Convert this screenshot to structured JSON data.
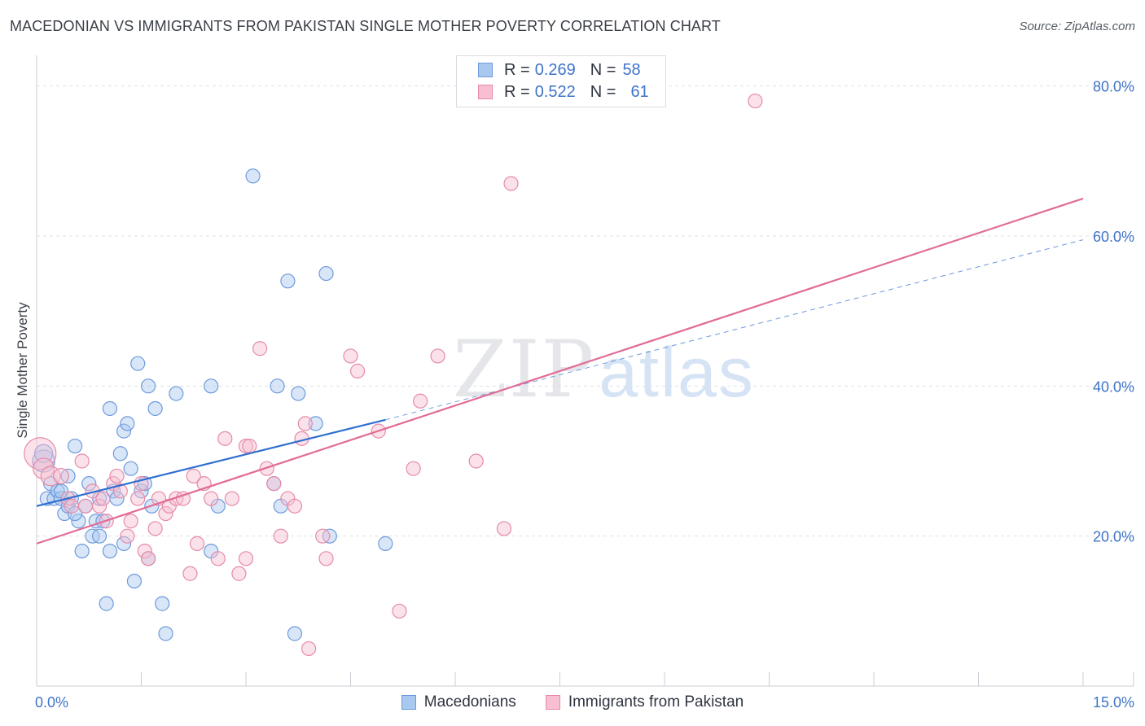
{
  "header": {
    "title": "MACEDONIAN VS IMMIGRANTS FROM PAKISTAN SINGLE MOTHER POVERTY CORRELATION CHART",
    "source": "Source: ZipAtlas.com"
  },
  "watermark": {
    "zip": "ZIP",
    "atlas": "atlas"
  },
  "legend": {
    "rows": [
      {
        "r_label": "R =",
        "r_value": "0.269",
        "n_label": "N =",
        "n_value": "58",
        "color": "#a9c8f0",
        "border": "#6e9bdc"
      },
      {
        "r_label": "R =",
        "r_value": "0.522",
        "n_label": "N =",
        "n_value": "61",
        "color": "#f7bfd1",
        "border": "#e68aa9"
      }
    ]
  },
  "bottom_legend": {
    "items": [
      {
        "label": "Macedonians",
        "color": "#a9c8f0",
        "border": "#6e9bdc"
      },
      {
        "label": "Immigrants from Pakistan",
        "color": "#f7bfd1",
        "border": "#e68aa9"
      }
    ]
  },
  "chart_data": {
    "type": "scatter",
    "title": "MACEDONIAN VS IMMIGRANTS FROM PAKISTAN SINGLE MOTHER POVERTY CORRELATION CHART",
    "xlabel": "",
    "ylabel": "Single Mother Poverty",
    "xlim": [
      0,
      15
    ],
    "ylim": [
      0,
      83
    ],
    "x_tick_labels": [
      {
        "value": 0,
        "label": "0.0%"
      },
      {
        "value": 15,
        "label": "15.0%"
      }
    ],
    "y_tick_labels": [
      {
        "value": 20,
        "label": "20.0%"
      },
      {
        "value": 40,
        "label": "40.0%"
      },
      {
        "value": 60,
        "label": "60.0%"
      },
      {
        "value": 80,
        "label": "80.0%"
      }
    ],
    "grid_y": [
      20,
      40,
      60,
      80
    ],
    "series": [
      {
        "name": "Macedonians",
        "color": "#a9c8f0",
        "stroke": "#6e9bdc",
        "line_color": "#2f6fd0",
        "trend": {
          "x0": 0,
          "y0": 24,
          "x1": 5,
          "y1": 35.5,
          "dash_x1": 15,
          "dash_y1": 59.5
        },
        "points": [
          [
            0.1,
            30,
            1.6
          ],
          [
            0.1,
            31,
            1.3
          ],
          [
            0.15,
            25,
            1
          ],
          [
            0.2,
            27,
            1
          ],
          [
            0.25,
            25,
            1
          ],
          [
            0.3,
            26,
            1
          ],
          [
            0.35,
            25,
            1
          ],
          [
            0.4,
            23,
            1
          ],
          [
            0.45,
            24,
            1
          ],
          [
            0.5,
            25,
            1
          ],
          [
            0.55,
            32,
            1
          ],
          [
            0.6,
            22,
            1
          ],
          [
            0.65,
            18,
            1
          ],
          [
            0.75,
            27,
            1
          ],
          [
            0.8,
            20,
            1
          ],
          [
            0.85,
            22,
            1
          ],
          [
            0.9,
            20,
            1
          ],
          [
            0.95,
            22,
            1
          ],
          [
            1.0,
            11,
            1
          ],
          [
            1.05,
            18,
            1
          ],
          [
            1.05,
            37,
            1
          ],
          [
            1.1,
            26,
            1
          ],
          [
            1.15,
            25,
            1
          ],
          [
            1.2,
            31,
            1
          ],
          [
            1.25,
            19,
            1
          ],
          [
            1.25,
            34,
            1
          ],
          [
            1.3,
            35,
            1
          ],
          [
            1.35,
            29,
            1
          ],
          [
            1.4,
            14,
            1
          ],
          [
            1.45,
            43,
            1
          ],
          [
            1.5,
            26,
            1
          ],
          [
            1.55,
            27,
            1
          ],
          [
            1.6,
            40,
            1
          ],
          [
            1.6,
            17,
            1
          ],
          [
            1.65,
            24,
            1
          ],
          [
            1.7,
            37,
            1
          ],
          [
            1.8,
            11,
            1
          ],
          [
            1.85,
            7,
            1
          ],
          [
            2.0,
            39,
            1
          ],
          [
            2.5,
            40,
            1
          ],
          [
            2.5,
            18,
            1
          ],
          [
            2.6,
            24,
            1
          ],
          [
            3.1,
            68,
            1
          ],
          [
            3.4,
            27,
            1
          ],
          [
            3.45,
            40,
            1
          ],
          [
            3.5,
            24,
            1
          ],
          [
            3.6,
            54,
            1
          ],
          [
            3.7,
            7,
            1
          ],
          [
            3.75,
            39,
            1
          ],
          [
            4.0,
            35,
            1
          ],
          [
            4.15,
            55,
            1
          ],
          [
            4.2,
            20,
            1
          ],
          [
            5.0,
            19,
            1
          ],
          [
            0.55,
            23,
            1
          ],
          [
            0.45,
            28,
            1
          ],
          [
            0.7,
            24,
            1
          ],
          [
            0.9,
            25,
            1
          ],
          [
            0.35,
            26,
            1
          ]
        ]
      },
      {
        "name": "Immigrants from Pakistan",
        "color": "#f7bfd1",
        "stroke": "#e68aa9",
        "line_color": "#e26b96",
        "trend": {
          "x0": 0,
          "y0": 19,
          "x1": 15,
          "y1": 65
        },
        "points": [
          [
            0.05,
            31,
            2.3
          ],
          [
            0.1,
            29,
            1.5
          ],
          [
            0.2,
            28,
            1.4
          ],
          [
            0.35,
            28,
            1.1
          ],
          [
            0.45,
            25,
            1
          ],
          [
            0.5,
            24,
            1
          ],
          [
            0.65,
            30,
            1
          ],
          [
            0.7,
            24,
            1
          ],
          [
            0.8,
            26,
            1
          ],
          [
            0.9,
            24,
            1
          ],
          [
            0.95,
            25,
            1
          ],
          [
            1.0,
            22,
            1
          ],
          [
            1.1,
            27,
            1
          ],
          [
            1.15,
            28,
            1
          ],
          [
            1.2,
            26,
            1
          ],
          [
            1.3,
            20,
            1
          ],
          [
            1.35,
            22,
            1
          ],
          [
            1.45,
            25,
            1
          ],
          [
            1.5,
            27,
            1
          ],
          [
            1.55,
            18,
            1
          ],
          [
            1.6,
            17,
            1
          ],
          [
            1.7,
            21,
            1
          ],
          [
            1.75,
            25,
            1
          ],
          [
            1.85,
            23,
            1
          ],
          [
            1.9,
            24,
            1
          ],
          [
            2.0,
            25,
            1
          ],
          [
            2.1,
            25,
            1
          ],
          [
            2.2,
            15,
            1
          ],
          [
            2.25,
            28,
            1
          ],
          [
            2.3,
            19,
            1
          ],
          [
            2.4,
            27,
            1
          ],
          [
            2.5,
            25,
            1
          ],
          [
            2.6,
            17,
            1
          ],
          [
            2.7,
            33,
            1
          ],
          [
            2.8,
            25,
            1
          ],
          [
            2.9,
            15,
            1
          ],
          [
            3.0,
            32,
            1
          ],
          [
            3.0,
            17,
            1
          ],
          [
            3.05,
            32,
            1
          ],
          [
            3.2,
            45,
            1
          ],
          [
            3.3,
            29,
            1
          ],
          [
            3.4,
            27,
            1
          ],
          [
            3.5,
            20,
            1
          ],
          [
            3.6,
            25,
            1
          ],
          [
            3.7,
            24,
            1
          ],
          [
            3.8,
            33,
            1
          ],
          [
            3.85,
            35,
            1
          ],
          [
            3.9,
            5,
            1
          ],
          [
            4.1,
            20,
            1
          ],
          [
            4.15,
            17,
            1
          ],
          [
            4.5,
            44,
            1
          ],
          [
            4.6,
            42,
            1
          ],
          [
            4.9,
            34,
            1
          ],
          [
            5.2,
            10,
            1
          ],
          [
            5.4,
            29,
            1
          ],
          [
            5.5,
            38,
            1
          ],
          [
            5.75,
            44,
            1
          ],
          [
            6.3,
            30,
            1
          ],
          [
            6.7,
            21,
            1
          ],
          [
            6.8,
            67,
            1
          ],
          [
            10.3,
            78,
            1
          ]
        ]
      }
    ]
  }
}
